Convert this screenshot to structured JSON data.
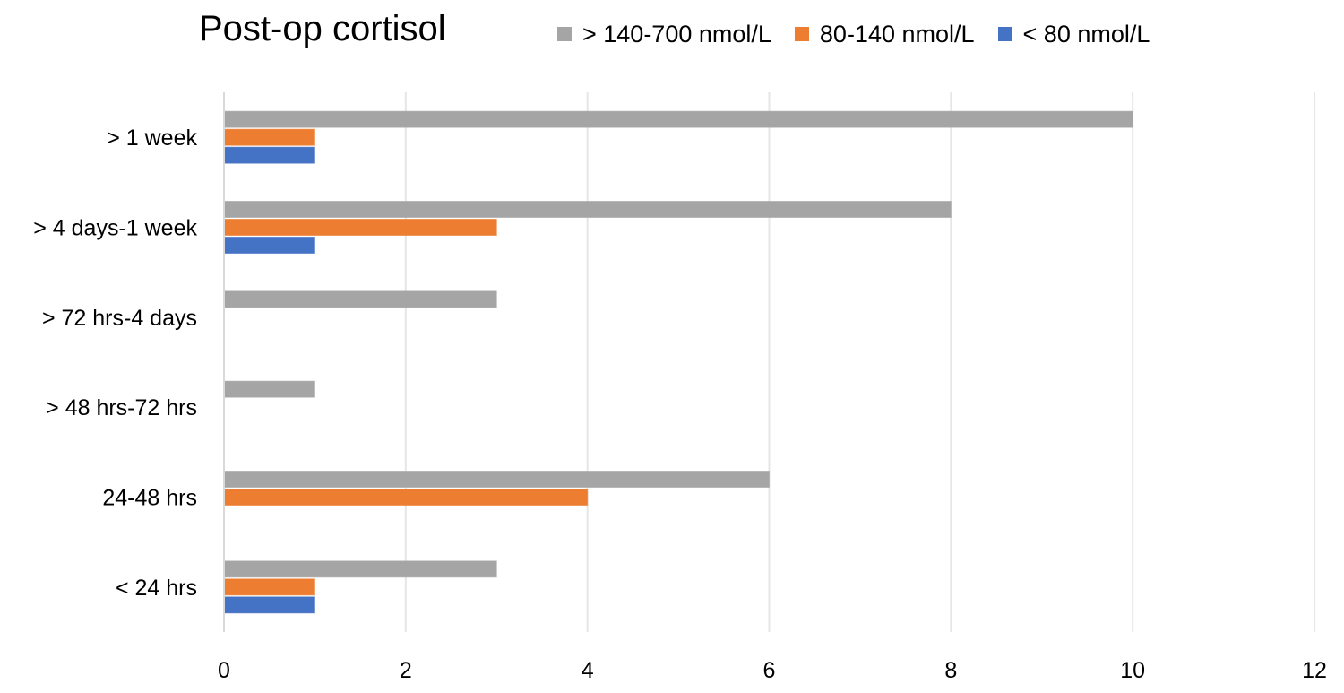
{
  "chart_data": {
    "type": "bar",
    "orientation": "horizontal",
    "title": "Post-op cortisol",
    "categories": [
      "< 24 hrs",
      "24-48 hrs",
      "> 48 hrs-72 hrs",
      "> 72 hrs-4 days",
      "> 4 days-1 week",
      "> 1 week"
    ],
    "series": [
      {
        "name": "> 140-700 nmol/L",
        "color": "#a5a5a5",
        "values": [
          3,
          6,
          1,
          3,
          8,
          10
        ]
      },
      {
        "name": "80-140 nmol/L",
        "color": "#ed7d31",
        "values": [
          1,
          4,
          0,
          0,
          3,
          1
        ]
      },
      {
        "name": "< 80 nmol/L",
        "color": "#4472c4",
        "values": [
          1,
          0,
          0,
          0,
          1,
          1
        ]
      }
    ],
    "xlim": [
      0,
      12
    ],
    "xticks": [
      "0",
      "2",
      "4",
      "6",
      "8",
      "10",
      "12"
    ],
    "grid": true,
    "legend_position": "top"
  }
}
